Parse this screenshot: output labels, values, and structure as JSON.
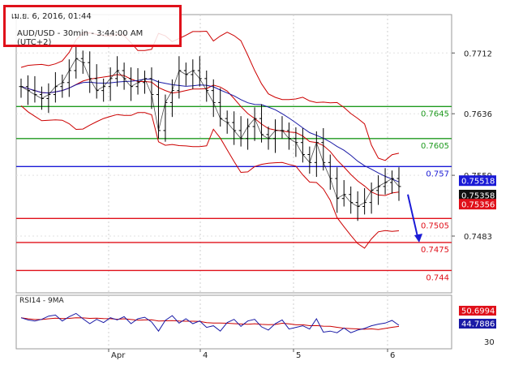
{
  "header": {
    "datetime": "เม.ย. 6, 2016, 01:44",
    "symbol_line": "AUD/USD - 30min - 3:44:00 AM (UTC+2)"
  },
  "rsi_panel": {
    "title": "RSI14 - 9MA",
    "labels": [
      "50.6994",
      "44.7886"
    ],
    "scale_tick": "30"
  },
  "colors": {
    "price": "#000000",
    "bollinger": "#cc0000",
    "moving_average": "#1a1aa6",
    "support_green": "#1f9a1f",
    "resistance_red": "#e0101a",
    "current_blue": "#1a1ad6",
    "forecast_arrow": "#1a1ad6"
  },
  "chart_data": {
    "type": "line",
    "title": "AUD/USD - 30min",
    "xlabel": "",
    "ylabel": "",
    "x_tick_labels": [
      "Apr",
      "4",
      "5",
      "6"
    ],
    "y_tick_labels": [
      "0.7712",
      "0.7636",
      "0.7559",
      "0.7483"
    ],
    "ylim": [
      0.7412,
      0.776
    ],
    "grid": true,
    "levels": [
      {
        "label": "0.7645",
        "value": 0.7645,
        "color": "green"
      },
      {
        "label": "0.7605",
        "value": 0.7605,
        "color": "green"
      },
      {
        "label": "0.757",
        "value": 0.757,
        "color": "blue"
      },
      {
        "label": "0.7505",
        "value": 0.7505,
        "color": "red"
      },
      {
        "label": "0.7475",
        "value": 0.7475,
        "color": "red"
      },
      {
        "label": "0.744",
        "value": 0.744,
        "color": "red"
      }
    ],
    "price_tags": [
      {
        "label": "0.75518",
        "value": 0.75518,
        "color": "blue"
      },
      {
        "label": "0.75358",
        "value": 0.75358,
        "color": "black"
      },
      {
        "label": "0.75356",
        "value": 0.75356,
        "color": "red"
      }
    ],
    "series": [
      {
        "name": "AUD/USD",
        "values": [
          0.767,
          0.7665,
          0.766,
          0.7655,
          0.766,
          0.767,
          0.7675,
          0.769,
          0.7705,
          0.77,
          0.768,
          0.7665,
          0.767,
          0.768,
          0.769,
          0.768,
          0.767,
          0.7675,
          0.768,
          0.766,
          0.7615,
          0.765,
          0.7665,
          0.769,
          0.7685,
          0.769,
          0.768,
          0.7665,
          0.765,
          0.763,
          0.7625,
          0.7615,
          0.7605,
          0.762,
          0.763,
          0.761,
          0.7605,
          0.7615,
          0.7615,
          0.7605,
          0.76,
          0.7585,
          0.7575,
          0.76,
          0.7575,
          0.7555,
          0.753,
          0.7535,
          0.7525,
          0.752,
          0.7525,
          0.754,
          0.7545,
          0.755,
          0.7555,
          0.7545
        ]
      }
    ],
    "rsi": {
      "name": "RSI14",
      "values": [
        58,
        54,
        52,
        55,
        61,
        63,
        52,
        60,
        66,
        56,
        47,
        55,
        49,
        58,
        54,
        60,
        47,
        56,
        59,
        50,
        33,
        53,
        62,
        48,
        56,
        47,
        52,
        40,
        43,
        33,
        49,
        55,
        42,
        52,
        55,
        41,
        35,
        47,
        54,
        37,
        40,
        43,
        37,
        56,
        31,
        33,
        30,
        39,
        30,
        35,
        38,
        43,
        46,
        48,
        53,
        44
      ]
    }
  }
}
